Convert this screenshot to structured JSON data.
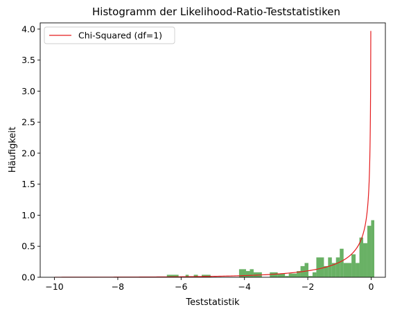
{
  "chart_data": {
    "type": "histogram",
    "title": "Histogramm der Likelihood-Ratio-Teststatistiken",
    "xlabel": "Teststatistik",
    "ylabel": "Häufigkeit",
    "xlim": [
      -10.45,
      0.45
    ],
    "ylim": [
      0,
      4.1
    ],
    "x_ticks": [
      -10,
      -8,
      -6,
      -4,
      -2,
      0
    ],
    "x_tick_labels": [
      "−10",
      "−8",
      "−6",
      "−4",
      "−2",
      "0"
    ],
    "y_ticks": [
      0,
      0.5,
      1.0,
      1.5,
      2.0,
      2.5,
      3.0,
      3.5,
      4.0
    ],
    "y_tick_labels": [
      "0.0",
      "0.5",
      "1.0",
      "1.5",
      "2.0",
      "2.5",
      "3.0",
      "3.5",
      "4.0"
    ],
    "grid": false,
    "histogram": {
      "color": "#4fa34a",
      "bars": [
        {
          "x0": -6.45,
          "x1": -6.08,
          "height": 0.04
        },
        {
          "x0": -5.86,
          "x1": -5.76,
          "height": 0.04
        },
        {
          "x0": -5.6,
          "x1": -5.47,
          "height": 0.04
        },
        {
          "x0": -5.35,
          "x1": -5.07,
          "height": 0.04
        },
        {
          "x0": -4.17,
          "x1": -3.95,
          "height": 0.13
        },
        {
          "x0": -3.95,
          "x1": -3.83,
          "height": 0.1
        },
        {
          "x0": -3.83,
          "x1": -3.71,
          "height": 0.13
        },
        {
          "x0": -3.71,
          "x1": -3.45,
          "height": 0.08
        },
        {
          "x0": -3.2,
          "x1": -2.95,
          "height": 0.08
        },
        {
          "x0": -2.95,
          "x1": -2.72,
          "height": 0.06
        },
        {
          "x0": -2.72,
          "x1": -2.6,
          "height": 0.02
        },
        {
          "x0": -2.6,
          "x1": -2.35,
          "height": 0.06
        },
        {
          "x0": -2.35,
          "x1": -2.23,
          "height": 0.1
        },
        {
          "x0": -2.23,
          "x1": -2.1,
          "height": 0.18
        },
        {
          "x0": -2.1,
          "x1": -1.98,
          "height": 0.23
        },
        {
          "x0": -1.98,
          "x1": -1.85,
          "height": 0.02
        },
        {
          "x0": -1.85,
          "x1": -1.73,
          "height": 0.08
        },
        {
          "x0": -1.73,
          "x1": -1.49,
          "height": 0.32
        },
        {
          "x0": -1.49,
          "x1": -1.36,
          "height": 0.18
        },
        {
          "x0": -1.36,
          "x1": -1.24,
          "height": 0.32
        },
        {
          "x0": -1.24,
          "x1": -1.11,
          "height": 0.23
        },
        {
          "x0": -1.11,
          "x1": -0.99,
          "height": 0.32
        },
        {
          "x0": -0.99,
          "x1": -0.87,
          "height": 0.46
        },
        {
          "x0": -0.87,
          "x1": -0.62,
          "height": 0.23
        },
        {
          "x0": -0.62,
          "x1": -0.49,
          "height": 0.37
        },
        {
          "x0": -0.49,
          "x1": -0.37,
          "height": 0.23
        },
        {
          "x0": -0.37,
          "x1": -0.25,
          "height": 0.64
        },
        {
          "x0": -0.25,
          "x1": -0.12,
          "height": 0.55
        },
        {
          "x0": -0.12,
          "x1": 0.0,
          "height": 0.83
        },
        {
          "x0": 0.0,
          "x1": 0.1,
          "height": 0.92
        }
      ]
    },
    "series": [
      {
        "name": "Chi-Squared (df=1)",
        "color": "#e41a1c",
        "function": "chi2_pdf_df1_of_abs_x",
        "x_range": [
          -10,
          -0.01
        ]
      }
    ],
    "legend": {
      "position": "top-left",
      "entries": [
        "Chi-Squared (df=1)"
      ]
    }
  }
}
